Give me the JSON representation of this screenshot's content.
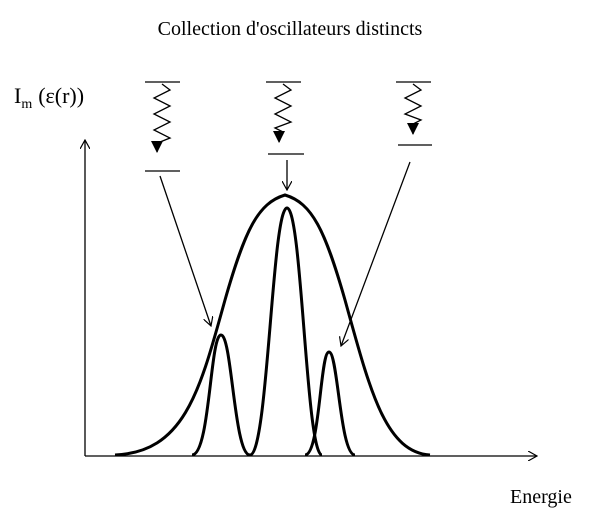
{
  "title": "Collection d'oscillateurs distincts",
  "axis_labels": {
    "y": {
      "main": "I",
      "subscript": "m",
      "rest": "(ε(r))"
    },
    "x": "Energie"
  }
}
